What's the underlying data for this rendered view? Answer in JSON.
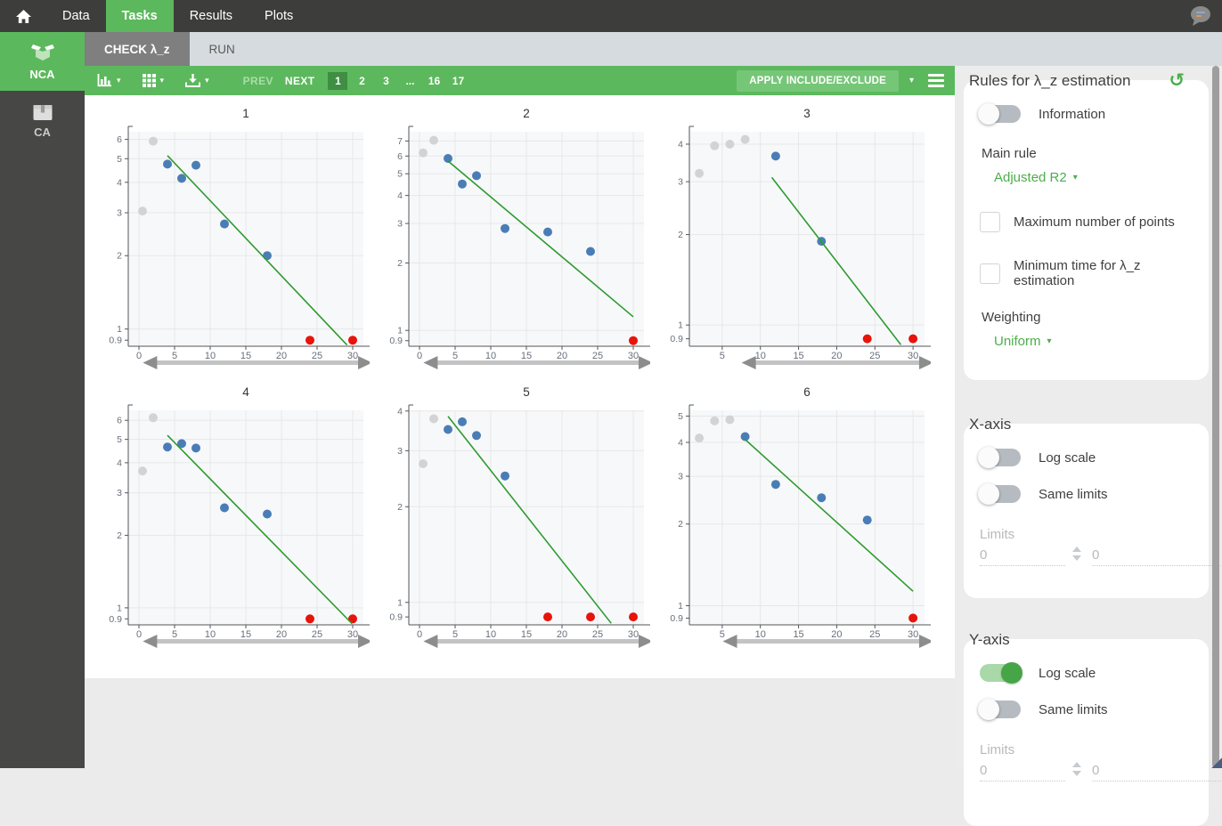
{
  "topbar": {
    "items": [
      "Data",
      "Tasks",
      "Results",
      "Plots"
    ],
    "active": "Tasks"
  },
  "sidebar": {
    "items": [
      {
        "label": "NCA",
        "icon": "open-box-icon",
        "active": true
      },
      {
        "label": "CA",
        "icon": "closed-box-icon",
        "active": false
      }
    ]
  },
  "tabs": [
    {
      "label": "CHECK λ_z",
      "active": true
    },
    {
      "label": "RUN",
      "active": false
    }
  ],
  "toolbar": {
    "prev_label": "PREV",
    "next_label": "NEXT",
    "pages": [
      "1",
      "2",
      "3",
      "...",
      "16",
      "17"
    ],
    "active_page": "1",
    "apply_label": "APPLY INCLUDE/EXCLUDE"
  },
  "icons": {
    "caret_down": "▾",
    "reset": "↺"
  },
  "panel": {
    "rules": {
      "title": "Rules for λ_z estimation",
      "information_label": "Information",
      "information_on": false,
      "main_rule_label": "Main rule",
      "main_rule_value": "Adjusted R2",
      "checkboxes": [
        {
          "label": "Maximum number of points",
          "checked": false
        },
        {
          "label": "Minimum time for λ_z estimation",
          "checked": false
        }
      ],
      "weighting_label": "Weighting",
      "weighting_value": "Uniform"
    },
    "x_axis": {
      "title": "X-axis",
      "log_scale_label": "Log scale",
      "log_scale_on": false,
      "same_limits_label": "Same limits",
      "same_limits_on": false,
      "limits_label": "Limits",
      "limit_min": "0",
      "limit_max": "0"
    },
    "y_axis": {
      "title": "Y-axis",
      "log_scale_label": "Log scale",
      "log_scale_on": true,
      "same_limits_label": "Same limits",
      "same_limits_on": false,
      "limits_label": "Limits",
      "limit_min": "0",
      "limit_max": "0"
    }
  },
  "colors": {
    "accent_green": "#5cb85c",
    "active_page_green": "#3f8e44",
    "apply_button_green": "#76c678",
    "fit_line": "#2e9b2e",
    "point_blue": "#4a7db6",
    "point_red": "#e81309",
    "point_gray": "#d3d3d3",
    "plot_bg": "#f7f8fa",
    "grid": "#e7e7e7",
    "axis": "#555555",
    "tick_text": "#68707a",
    "slider_bar": "#c3c3c3",
    "slider_arrow": "#8d8d8d"
  },
  "chart_data": [
    {
      "title": "1",
      "type": "scatter",
      "yscale": "log",
      "xlabel": "",
      "ylabel": "",
      "xlim": [
        -1.5,
        31.5
      ],
      "ylim": [
        0.85,
        6.45
      ],
      "x_ticks": [
        0,
        5,
        10,
        15,
        20,
        25,
        30
      ],
      "y_ticks": [
        6,
        5,
        4,
        3,
        2,
        1,
        0.9
      ],
      "points": {
        "not_used_gray": [
          [
            0.5,
            3.05
          ],
          [
            2,
            5.9
          ]
        ],
        "included_blue": [
          [
            4,
            4.75
          ],
          [
            6,
            4.15
          ],
          [
            8,
            4.7
          ],
          [
            12,
            2.7
          ],
          [
            18,
            2.0
          ]
        ],
        "excluded_red": [
          [
            24,
            0.9
          ],
          [
            30,
            0.9
          ]
        ]
      },
      "fit_line": [
        [
          4,
          5.15
        ],
        [
          29.2,
          0.86
        ]
      ],
      "slider_start_frac": 0.1
    },
    {
      "title": "2",
      "type": "scatter",
      "yscale": "log",
      "xlabel": "",
      "ylabel": "",
      "xlim": [
        -1.5,
        31.5
      ],
      "ylim": [
        0.85,
        7.7
      ],
      "x_ticks": [
        0,
        5,
        10,
        15,
        20,
        25,
        30
      ],
      "y_ticks": [
        7,
        6,
        5,
        4,
        3,
        2,
        1,
        0.9
      ],
      "points": {
        "not_used_gray": [
          [
            0.5,
            6.2
          ],
          [
            2,
            7.05
          ]
        ],
        "included_blue": [
          [
            4,
            5.85
          ],
          [
            6,
            4.5
          ],
          [
            8,
            4.9
          ],
          [
            12,
            2.85
          ],
          [
            18,
            2.75
          ],
          [
            24,
            2.25
          ]
        ],
        "excluded_red": [
          [
            30,
            0.9
          ]
        ]
      },
      "fit_line": [
        [
          4,
          5.7
        ],
        [
          30,
          1.15
        ]
      ],
      "slider_start_frac": 0.1
    },
    {
      "title": "3",
      "type": "scatter",
      "yscale": "log",
      "xlabel": "",
      "ylabel": "",
      "xlim": [
        0.7,
        31.5
      ],
      "ylim": [
        0.85,
        4.4
      ],
      "x_ticks": [
        5,
        10,
        15,
        20,
        25,
        30
      ],
      "y_ticks": [
        4,
        3,
        2,
        1,
        0.9
      ],
      "points": {
        "not_used_gray": [
          [
            2,
            3.2
          ],
          [
            4,
            3.95
          ],
          [
            6,
            4.0
          ],
          [
            8,
            4.15
          ]
        ],
        "included_blue": [
          [
            12,
            3.65
          ],
          [
            18,
            1.9
          ]
        ],
        "excluded_red": [
          [
            24,
            0.9
          ],
          [
            30,
            0.9
          ]
        ]
      },
      "fit_line": [
        [
          11.5,
          3.1
        ],
        [
          28.4,
          0.86
        ]
      ],
      "slider_start_frac": 0.26
    },
    {
      "title": "4",
      "type": "scatter",
      "yscale": "log",
      "xlabel": "",
      "ylabel": "",
      "xlim": [
        -1.5,
        31.5
      ],
      "ylim": [
        0.85,
        6.6
      ],
      "x_ticks": [
        0,
        5,
        10,
        15,
        20,
        25,
        30
      ],
      "y_ticks": [
        6,
        5,
        4,
        3,
        2,
        1,
        0.9
      ],
      "points": {
        "not_used_gray": [
          [
            0.5,
            3.7
          ],
          [
            2,
            6.15
          ]
        ],
        "included_blue": [
          [
            4,
            4.65
          ],
          [
            6,
            4.8
          ],
          [
            8,
            4.6
          ],
          [
            12,
            2.6
          ],
          [
            18,
            2.45
          ]
        ],
        "excluded_red": [
          [
            24,
            0.9
          ],
          [
            30,
            0.9
          ]
        ]
      },
      "fit_line": [
        [
          4,
          5.2
        ],
        [
          29.9,
          0.86
        ]
      ],
      "slider_start_frac": 0.1
    },
    {
      "title": "5",
      "type": "scatter",
      "yscale": "log",
      "xlabel": "",
      "ylabel": "",
      "xlim": [
        -1.5,
        31.5
      ],
      "ylim": [
        0.85,
        4.02
      ],
      "x_ticks": [
        0,
        5,
        10,
        15,
        20,
        25,
        30
      ],
      "y_ticks": [
        4,
        3,
        2,
        1,
        0.9
      ],
      "points": {
        "not_used_gray": [
          [
            0.5,
            2.73
          ],
          [
            2,
            3.78
          ]
        ],
        "included_blue": [
          [
            4,
            3.5
          ],
          [
            6,
            3.7
          ],
          [
            8,
            3.35
          ],
          [
            12,
            2.5
          ]
        ],
        "excluded_red": [
          [
            18,
            0.9
          ],
          [
            24,
            0.9
          ],
          [
            30,
            0.9
          ]
        ]
      },
      "fit_line": [
        [
          4,
          3.85
        ],
        [
          26.9,
          0.86
        ]
      ],
      "slider_start_frac": 0.1
    },
    {
      "title": "6",
      "type": "scatter",
      "yscale": "log",
      "xlabel": "",
      "ylabel": "",
      "xlim": [
        0.7,
        31.5
      ],
      "ylim": [
        0.85,
        5.25
      ],
      "x_ticks": [
        5,
        10,
        15,
        20,
        25,
        30
      ],
      "y_ticks": [
        5,
        4,
        3,
        2,
        1,
        0.9
      ],
      "points": {
        "not_used_gray": [
          [
            2,
            4.15
          ],
          [
            4,
            4.8
          ],
          [
            6,
            4.85
          ]
        ],
        "included_blue": [
          [
            8,
            4.2
          ],
          [
            12,
            2.8
          ],
          [
            18,
            2.5
          ],
          [
            24,
            2.07
          ]
        ],
        "excluded_red": [
          [
            30,
            0.9
          ]
        ]
      },
      "fit_line": [
        [
          8,
          4.1
        ],
        [
          30,
          1.13
        ]
      ],
      "slider_start_frac": 0.18
    }
  ]
}
